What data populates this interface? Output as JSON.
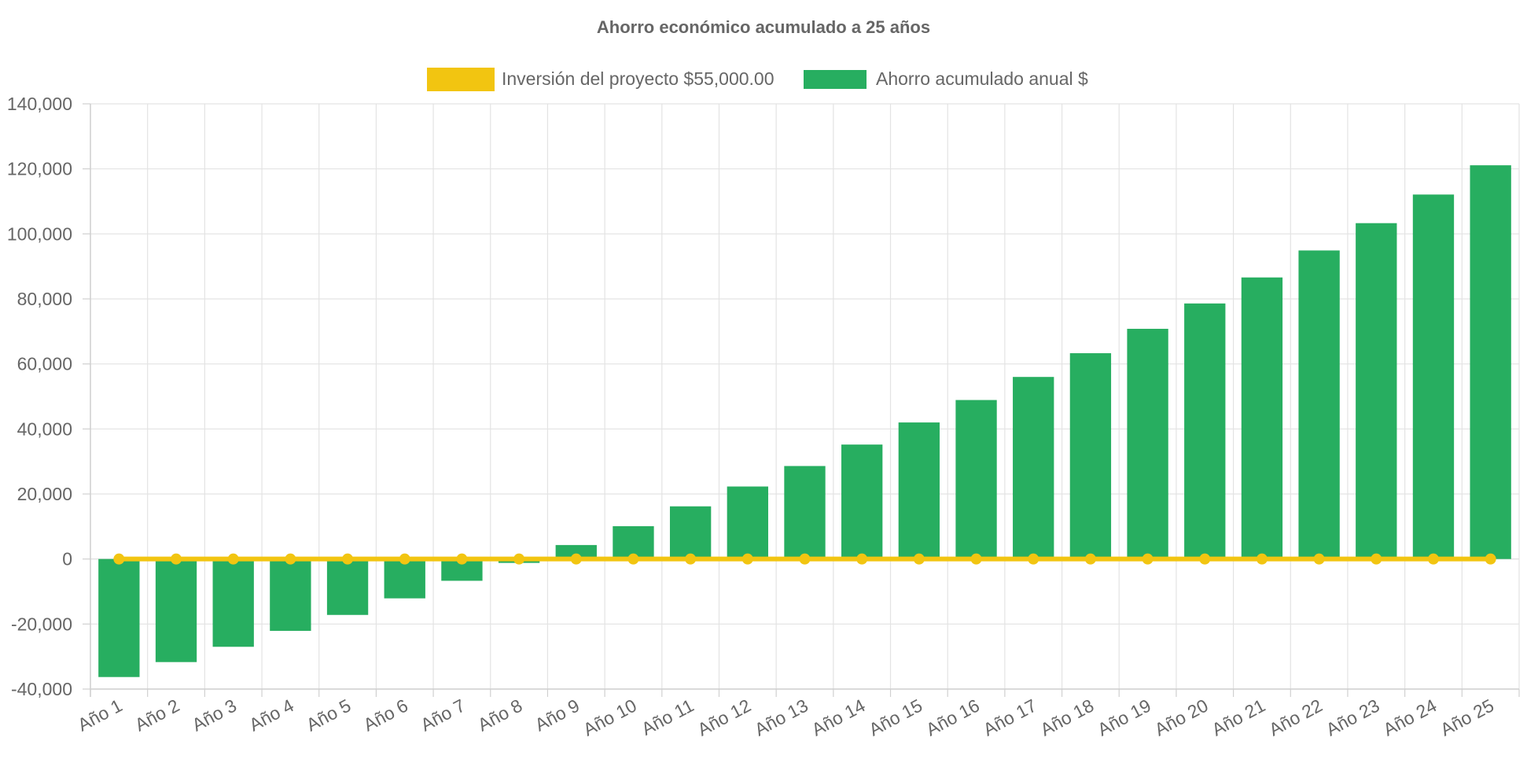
{
  "chart_data": {
    "type": "bar",
    "title": "Ahorro económico acumulado a 25 años",
    "categories": [
      "Año 1",
      "Año 2",
      "Año 3",
      "Año 4",
      "Año 5",
      "Año 6",
      "Año 7",
      "Año 8",
      "Año 9",
      "Año 10",
      "Año 11",
      "Año 12",
      "Año 13",
      "Año 14",
      "Año 15",
      "Año 16",
      "Año 17",
      "Año 18",
      "Año 19",
      "Año 20",
      "Año 21",
      "Año 22",
      "Año 23",
      "Año 24",
      "Año 25"
    ],
    "series": [
      {
        "name": "Inversión del proyecto $55,000.00",
        "type": "line",
        "color": "#f2c511",
        "values": [
          0,
          0,
          0,
          0,
          0,
          0,
          0,
          0,
          0,
          0,
          0,
          0,
          0,
          0,
          0,
          0,
          0,
          0,
          0,
          0,
          0,
          0,
          0,
          0,
          0
        ]
      },
      {
        "name": "Ahorro acumulado anual $",
        "type": "bar",
        "color": "#27ae60",
        "values": [
          -36300,
          -31700,
          -27000,
          -22100,
          -17200,
          -12100,
          -6700,
          -1200,
          4300,
          10100,
          16200,
          22300,
          28600,
          35200,
          42000,
          48900,
          56000,
          63300,
          70800,
          78600,
          86600,
          94900,
          103300,
          112100,
          121100
        ]
      }
    ],
    "y_ticks": [
      "140,000",
      "120,000",
      "100,000",
      "80,000",
      "60,000",
      "40,000",
      "20,000",
      "0",
      "-20,000",
      "-40,000"
    ],
    "ylim": [
      -40000,
      140000
    ],
    "grid": true,
    "legend_position": "top"
  }
}
